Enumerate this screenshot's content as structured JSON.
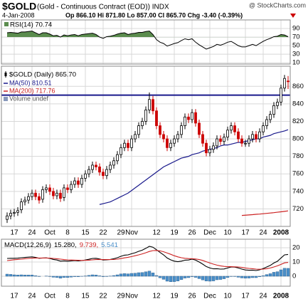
{
  "header": {
    "symbol": "$GOLD",
    "name": "(Gold - Continuous Contract (EOD)) INDX",
    "source": "@ StockCharts.com",
    "date": "4-Jan-2008",
    "quote": "Op 866.10  Hi 871.80  Lo 857.00  Cl 865.70  Chg -3.40 (-0.39%)"
  },
  "chart_data": [
    {
      "type": "line",
      "label": "RSI(14) 70.74",
      "color": "#000000",
      "fill_color": "#5b8c4e",
      "fill_above": 70,
      "ylim": [
        7,
        110
      ],
      "yticks": [
        90,
        70,
        50,
        30,
        10
      ],
      "values": [
        80,
        81,
        80,
        79,
        82,
        82,
        83,
        84,
        80,
        76,
        80,
        80,
        77,
        73,
        74,
        70,
        75,
        73,
        75,
        76,
        73,
        76,
        77,
        78,
        79,
        76,
        70,
        67,
        71,
        72,
        74,
        77,
        79,
        80,
        76,
        78,
        79,
        81,
        81,
        83,
        84,
        76,
        64,
        58,
        55,
        49,
        52,
        55,
        57,
        62,
        66,
        64,
        66,
        58,
        52,
        47,
        42,
        45,
        48,
        53,
        51,
        54,
        58,
        60,
        55,
        50,
        47,
        47,
        50,
        53,
        50,
        55,
        60,
        64,
        67,
        71,
        72,
        76,
        75,
        70.74
      ]
    },
    {
      "type": "candlestick",
      "name": "$GOLD (Daily) 865.70",
      "volume_label": "Volume undef",
      "up_color": "#000000",
      "down_color": "#cc0000",
      "ylim": [
        700,
        883
      ],
      "yticks": [
        860,
        840,
        820,
        800,
        780,
        760,
        740,
        720
      ],
      "grid": true,
      "hline": 850,
      "hline_color": "#1a1a8c",
      "xticks": [
        {
          "value": 2,
          "label": "17"
        },
        {
          "value": 7,
          "label": "24"
        },
        {
          "value": 12,
          "label": "Oct"
        },
        {
          "value": 17,
          "label": "8"
        },
        {
          "value": 22,
          "label": "15"
        },
        {
          "value": 27,
          "label": "22"
        },
        {
          "value": 32,
          "label": "29"
        },
        {
          "value": 35,
          "label": "Nov"
        },
        {
          "value": 42,
          "label": "12"
        },
        {
          "value": 47,
          "label": "19"
        },
        {
          "value": 52,
          "label": "26"
        },
        {
          "value": 57,
          "label": "Dec"
        },
        {
          "value": 62,
          "label": "10"
        },
        {
          "value": 67,
          "label": "17"
        },
        {
          "value": 72,
          "label": "24"
        },
        {
          "value": 77,
          "label": "2008"
        }
      ],
      "open": [
        708,
        712,
        715,
        716,
        719,
        728,
        730,
        734,
        738,
        734,
        731,
        742,
        744,
        740,
        735,
        738,
        733,
        744,
        742,
        748,
        752,
        748,
        755,
        760,
        765,
        770,
        768,
        762,
        758,
        765,
        770,
        775,
        782,
        790,
        795,
        790,
        800,
        805,
        815,
        820,
        833,
        845,
        832,
        815,
        805,
        800,
        790,
        795,
        800,
        805,
        815,
        825,
        822,
        830,
        818,
        805,
        795,
        784,
        788,
        792,
        800,
        797,
        802,
        810,
        815,
        808,
        800,
        795,
        795,
        800,
        805,
        800,
        808,
        815,
        822,
        828,
        838,
        842,
        858,
        866.1
      ],
      "high": [
        716,
        719,
        720,
        722,
        732,
        734,
        738,
        742,
        742,
        738,
        746,
        748,
        748,
        744,
        742,
        742,
        748,
        748,
        752,
        756,
        756,
        759,
        764,
        769,
        774,
        774,
        772,
        766,
        769,
        774,
        779,
        786,
        794,
        799,
        799,
        804,
        809,
        819,
        824,
        837,
        853,
        849,
        836,
        819,
        809,
        804,
        799,
        804,
        809,
        819,
        829,
        829,
        834,
        834,
        822,
        809,
        799,
        792,
        796,
        804,
        804,
        806,
        814,
        819,
        819,
        812,
        804,
        799,
        804,
        809,
        809,
        812,
        819,
        826,
        832,
        842,
        846,
        862,
        873,
        871.8
      ],
      "low": [
        704,
        708,
        711,
        712,
        715,
        724,
        726,
        730,
        730,
        726,
        727,
        738,
        736,
        731,
        731,
        728,
        729,
        738,
        738,
        744,
        744,
        744,
        751,
        756,
        761,
        764,
        758,
        754,
        754,
        761,
        766,
        771,
        778,
        786,
        786,
        786,
        796,
        801,
        811,
        816,
        829,
        828,
        811,
        801,
        796,
        786,
        786,
        791,
        796,
        801,
        811,
        818,
        818,
        814,
        801,
        791,
        780,
        780,
        784,
        788,
        793,
        793,
        798,
        806,
        804,
        796,
        791,
        791,
        791,
        796,
        796,
        796,
        804,
        811,
        818,
        824,
        834,
        838,
        854,
        857
      ],
      "close": [
        712,
        715,
        716,
        718,
        728,
        730,
        734,
        738,
        734,
        730,
        742,
        744,
        740,
        735,
        738,
        732,
        744,
        742,
        748,
        752,
        748,
        755,
        760,
        765,
        770,
        768,
        762,
        758,
        765,
        770,
        775,
        782,
        790,
        795,
        790,
        800,
        805,
        815,
        820,
        833,
        845,
        832,
        815,
        805,
        800,
        790,
        795,
        800,
        805,
        815,
        825,
        822,
        830,
        818,
        805,
        795,
        784,
        788,
        792,
        800,
        797,
        802,
        810,
        815,
        808,
        800,
        795,
        795,
        800,
        805,
        800,
        808,
        815,
        822,
        828,
        838,
        842,
        858,
        869,
        865.7
      ],
      "series": [
        {
          "name": "MA(50) 810.51",
          "color": "#1a1a8c",
          "values": [
            null,
            null,
            null,
            null,
            null,
            null,
            null,
            null,
            null,
            null,
            null,
            null,
            null,
            null,
            null,
            null,
            null,
            null,
            null,
            null,
            null,
            null,
            null,
            null,
            null,
            null,
            725,
            726,
            727,
            728,
            730,
            732,
            734,
            736,
            738,
            741,
            744,
            747,
            750,
            753,
            756,
            759,
            762,
            765,
            768,
            770,
            772,
            774,
            776,
            778,
            779,
            780,
            782,
            783,
            784,
            786,
            787,
            788,
            789,
            790,
            792,
            793,
            793,
            794,
            795,
            796,
            796,
            797,
            798,
            799,
            800,
            800,
            802,
            803,
            804,
            806,
            807,
            808,
            809,
            810.51
          ]
        },
        {
          "name": "MA(200) 717.76",
          "color": "#cc2222",
          "values": [
            null,
            null,
            null,
            null,
            null,
            null,
            null,
            null,
            null,
            null,
            null,
            null,
            null,
            null,
            null,
            null,
            null,
            null,
            null,
            null,
            null,
            null,
            null,
            null,
            null,
            null,
            null,
            null,
            null,
            null,
            null,
            null,
            null,
            null,
            null,
            null,
            null,
            null,
            null,
            null,
            null,
            null,
            null,
            null,
            null,
            null,
            null,
            null,
            null,
            null,
            null,
            null,
            null,
            null,
            null,
            null,
            null,
            null,
            null,
            null,
            null,
            null,
            null,
            null,
            null,
            null,
            712.5,
            712.8,
            713.1,
            713.4,
            713.8,
            714.1,
            714.5,
            714.9,
            715.3,
            715.7,
            716.2,
            716.7,
            717.2,
            717.76
          ]
        }
      ]
    },
    {
      "type": "macd",
      "label_parts": [
        "MACD(12,26,9)",
        "15.280,",
        "9.739,",
        "5.541"
      ],
      "ylim": [
        -7,
        26
      ],
      "yticks": [
        20,
        10,
        0
      ],
      "xticks": [
        {
          "value": 2,
          "label": "17"
        },
        {
          "value": 7,
          "label": "24"
        },
        {
          "value": 12,
          "label": "Oct"
        },
        {
          "value": 17,
          "label": "8"
        },
        {
          "value": 22,
          "label": "15"
        },
        {
          "value": 27,
          "label": "22"
        },
        {
          "value": 32,
          "label": "29"
        },
        {
          "value": 35,
          "label": "Nov"
        },
        {
          "value": 42,
          "label": "12"
        },
        {
          "value": 47,
          "label": "19"
        },
        {
          "value": 52,
          "label": "26"
        },
        {
          "value": 57,
          "label": "Dec"
        },
        {
          "value": 62,
          "label": "10"
        },
        {
          "value": 67,
          "label": "17"
        },
        {
          "value": 72,
          "label": "24"
        },
        {
          "value": 77,
          "label": "2008"
        }
      ],
      "series": [
        {
          "color": "#000000",
          "values": [
            12.5,
            12.6,
            12.6,
            12.7,
            13,
            13.2,
            13.4,
            13.6,
            13.2,
            12.6,
            12.8,
            12.9,
            12.5,
            11.8,
            11.4,
            10.6,
            10.8,
            10.6,
            10.8,
            11,
            10.8,
            11,
            11.4,
            11.9,
            12.5,
            12.6,
            12.1,
            11.4,
            11.5,
            11.8,
            12.3,
            13,
            14,
            14.8,
            15,
            15.8,
            16.5,
            17.5,
            18.3,
            19.6,
            21,
            20.4,
            18.6,
            16.7,
            15,
            12.8,
            11.5,
            10.6,
            10.2,
            10.6,
            11.3,
            11.4,
            12,
            11.3,
            10,
            8.5,
            6.8,
            5.8,
            5.2,
            5.3,
            5,
            5.1,
            5.8,
            6.5,
            6.4,
            5.8,
            5,
            4.4,
            4.2,
            4.3,
            4,
            4.5,
            5.4,
            6.5,
            7.6,
            9.3,
            10.5,
            12.8,
            15,
            15.28
          ]
        },
        {
          "color": "#cc2222",
          "values": [
            11,
            11.3,
            11.6,
            11.8,
            12,
            12.3,
            12.5,
            12.7,
            12.8,
            12.8,
            12.8,
            12.8,
            12.7,
            12.5,
            12.3,
            12,
            11.7,
            11.5,
            11.4,
            11.3,
            11.2,
            11.1,
            11.2,
            11.3,
            11.5,
            11.7,
            11.8,
            11.7,
            11.7,
            11.7,
            11.8,
            12,
            12.4,
            12.9,
            13.3,
            13.8,
            14.4,
            15,
            15.7,
            16.5,
            17.4,
            18,
            18.1,
            17.8,
            17.2,
            16.3,
            15.4,
            14.4,
            13.6,
            13,
            12.6,
            12.4,
            12.3,
            12.1,
            11.7,
            11.1,
            10.2,
            9.3,
            8.5,
            7.8,
            7.3,
            6.9,
            6.7,
            6.7,
            6.6,
            6.5,
            6.2,
            5.8,
            5.5,
            5.3,
            5,
            4.9,
            5,
            5.3,
            5.8,
            6.5,
            7.3,
            8.3,
            9.4,
            9.739
          ]
        }
      ],
      "histogram": {
        "color": "#4a8fc9",
        "values": [
          1.5,
          1.3,
          1.0,
          0.9,
          1.0,
          0.9,
          0.9,
          0.9,
          0.4,
          -0.2,
          0,
          0.1,
          -0.2,
          -0.7,
          -0.9,
          -1.4,
          -0.9,
          -0.9,
          -0.6,
          -0.3,
          -0.4,
          -0.1,
          0.2,
          0.6,
          1.0,
          0.9,
          0.3,
          -0.3,
          -0.2,
          0.1,
          0.5,
          1.0,
          1.6,
          1.9,
          1.7,
          2.0,
          2.1,
          2.5,
          2.6,
          3.1,
          3.6,
          2.4,
          0.5,
          -1.1,
          -2.2,
          -3.5,
          -3.9,
          -3.8,
          -3.4,
          -2.4,
          -1.3,
          -1.0,
          -0.3,
          -0.8,
          -1.7,
          -2.6,
          -3.4,
          -3.5,
          -3.3,
          -2.5,
          -2.3,
          -1.8,
          -0.9,
          -0.2,
          -0.2,
          -0.7,
          -1.2,
          -1.4,
          -1.3,
          -1.0,
          -1.0,
          -0.4,
          0.4,
          1.2,
          1.8,
          2.8,
          3.2,
          4.5,
          5.6,
          5.541
        ]
      }
    }
  ]
}
